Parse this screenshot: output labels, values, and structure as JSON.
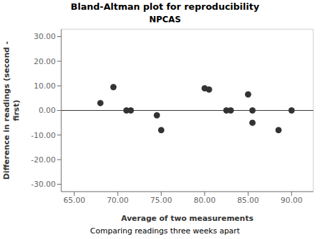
{
  "chart_data": {
    "type": "scatter",
    "title": "Bland-Altman plot for reproducibility",
    "subtitle": "NPCAS",
    "x_label": "Average of two measurements",
    "y_label": "Difference in readings (second -\nfirst)",
    "footnote": "Comparing readings three weeks apart",
    "x": [
      68.0,
      69.5,
      71.0,
      71.5,
      74.5,
      75.0,
      80.0,
      80.5,
      82.5,
      83.0,
      85.0,
      85.5,
      85.5,
      88.5,
      90.0
    ],
    "values": [
      3.0,
      9.5,
      0.0,
      0.0,
      -2.0,
      -8.0,
      9.0,
      8.5,
      0.0,
      0.0,
      6.5,
      -5.0,
      0.0,
      -8.0,
      0.0
    ],
    "xlim": [
      63.5,
      92.5
    ],
    "ylim": [
      -33,
      33
    ],
    "xticks": [
      {
        "value": 65,
        "label": "65.00"
      },
      {
        "value": 70,
        "label": "70.00"
      },
      {
        "value": 75,
        "label": "75.00"
      },
      {
        "value": 80,
        "label": "80.00"
      },
      {
        "value": 85,
        "label": "85.00"
      },
      {
        "value": 90,
        "label": "90.00"
      }
    ],
    "yticks": [
      {
        "value": -30,
        "label": "-30.00"
      },
      {
        "value": -20,
        "label": "-20.00"
      },
      {
        "value": -10,
        "label": "-10.00"
      },
      {
        "value": 0,
        "label": "0.00"
      },
      {
        "value": 10,
        "label": "10.00"
      },
      {
        "value": 20,
        "label": "20.00"
      },
      {
        "value": 30,
        "label": "30.00"
      }
    ],
    "reference_line_y": 0,
    "marker": "circle",
    "color": "#333333",
    "grid": false
  }
}
